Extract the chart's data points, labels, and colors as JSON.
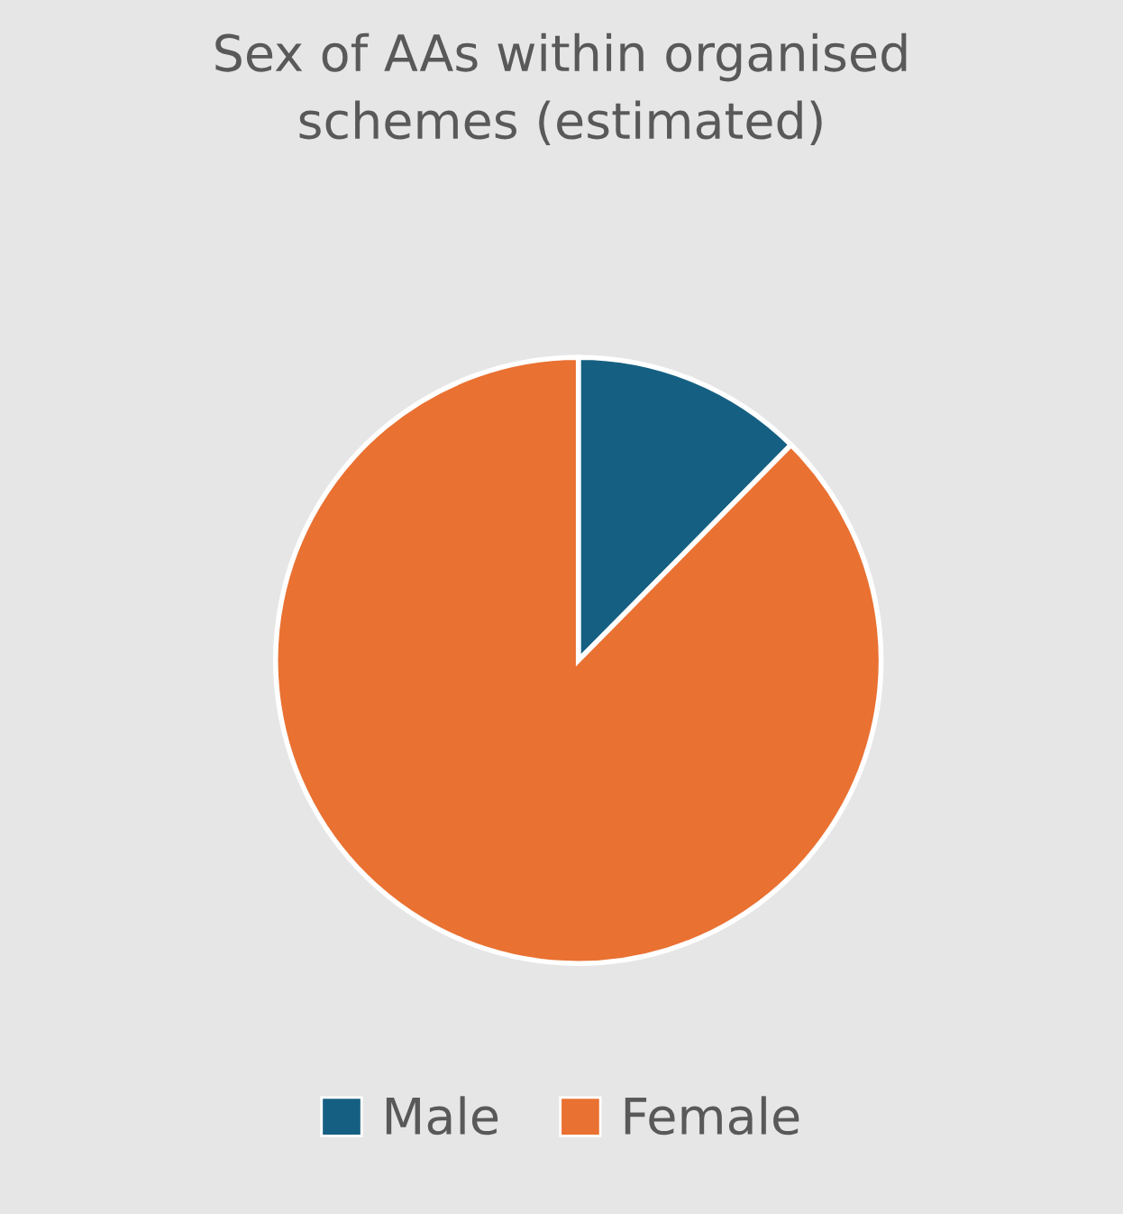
{
  "chart_data": {
    "type": "pie",
    "title": "Sex of AAs within organised\nschemes (estimated)",
    "categories": [
      "Male",
      "Female"
    ],
    "values": [
      12.4,
      87.6
    ],
    "colors": [
      "#156082",
      "#e97132"
    ],
    "legend": "bottom"
  }
}
